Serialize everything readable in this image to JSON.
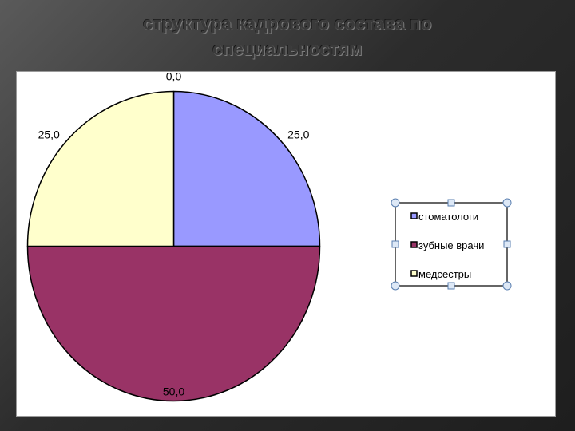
{
  "slide": {
    "title_line1": "структура кадрового состава по",
    "title_line2": "специальностям"
  },
  "chart_data": {
    "type": "pie",
    "title": "структура кадрового состава по специальностям",
    "categories": [
      "стоматологи",
      "зубные врачи",
      "медсестры"
    ],
    "values": [
      25.0,
      50.0,
      25.0
    ],
    "data_labels": [
      "25,0",
      "50,0",
      "25,0"
    ],
    "extra_label": "0,0",
    "colors": [
      "#9999ff",
      "#993366",
      "#ffffcc"
    ],
    "legend_position": "right"
  }
}
